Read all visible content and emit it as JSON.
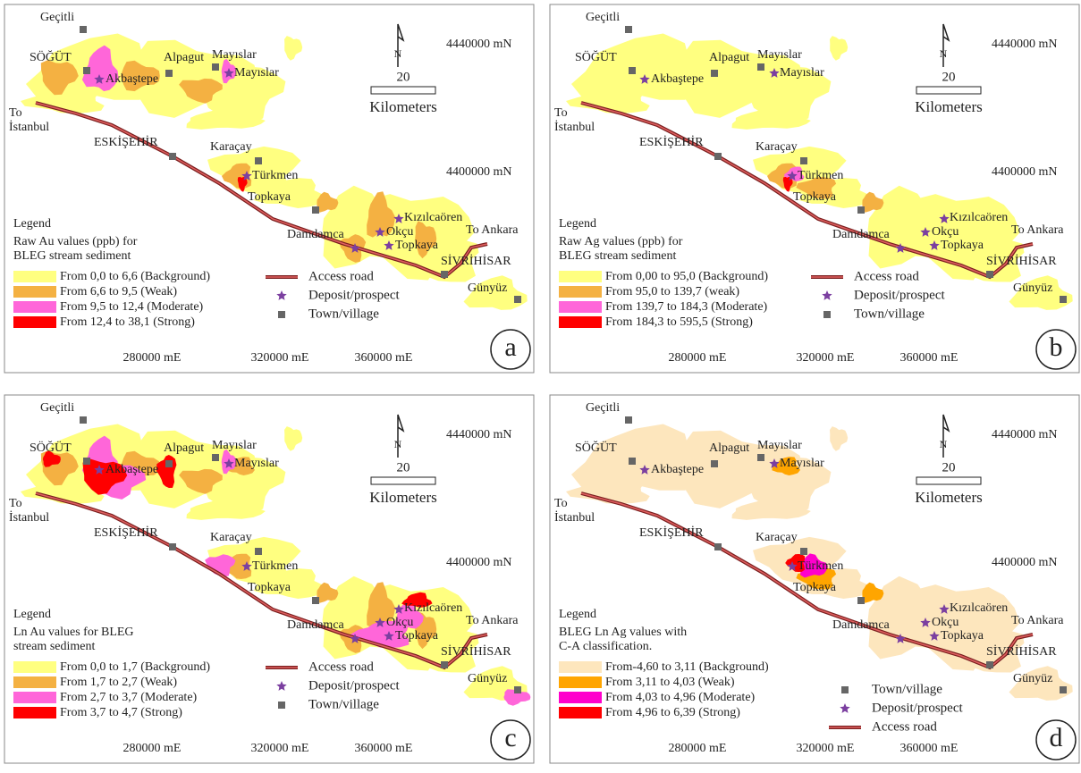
{
  "panels": [
    {
      "letter": "a",
      "places": [
        "Geçitli",
        "SÖĞÜT",
        "Akbaştepe",
        "Alpagut",
        "Mayıslar",
        "Mayıslar",
        "ESKİŞEHİR",
        "Karaçay",
        "Türkmen",
        "Topkaya",
        "Damdamca",
        "Kızılcaören",
        "Okçu",
        "Topkaya",
        "To Ankara",
        "SİVRİHİSAR",
        "Günyüz",
        "To",
        "İstanbul"
      ],
      "north": "N",
      "scale": "20",
      "scale_unit": "Kilometers",
      "northings": [
        "4440000 mN",
        "4400000 mN"
      ],
      "eastings": [
        "280000 mE",
        "320000 mE",
        "360000 mE"
      ],
      "legend": {
        "heading": "Legend",
        "title": [
          "Raw Au values (ppb) for",
          "BLEG stream sediment"
        ],
        "classes": [
          {
            "label": "From 0,0 to 6,6 (Background)",
            "color": "#ffff80"
          },
          {
            "label": "From 6,6 to 9,5 (Weak)",
            "color": "#f4b142"
          },
          {
            "label": "From 9,5 to 12,4 (Moderate)",
            "color": "#ff66d9"
          },
          {
            "label": "From 12,4 to 38,1 (Strong)",
            "color": "#ff0000"
          }
        ]
      },
      "symbols": [
        "Access road",
        "Deposit/prospect",
        "Town/village"
      ]
    },
    {
      "letter": "b",
      "places": [
        "Geçitli",
        "SÖĞÜT",
        "Akbaştepe",
        "Alpagut",
        "Mayıslar",
        "Mayıslar",
        "ESKİŞEHİR",
        "Karaçay",
        "Türkmen",
        "Topkaya",
        "Damdamca",
        "Kızılcaören",
        "Okçu",
        "Topkaya",
        "To Ankara",
        "SİVRİHİSAR",
        "Günyüz",
        "To",
        "İstanbul"
      ],
      "north": "N",
      "scale": "20",
      "scale_unit": "Kilometers",
      "northings": [
        "4440000 mN",
        "4400000 mN"
      ],
      "eastings": [
        "280000 mE",
        "320000 mE",
        "360000 mE"
      ],
      "legend": {
        "heading": "Legend",
        "title": [
          "Raw Ag values (ppb) for",
          "BLEG stream sediment"
        ],
        "classes": [
          {
            "label": "From 0,00 to 95,0 (Background)",
            "color": "#ffff80"
          },
          {
            "label": "From 95,0 to 139,7 (weak)",
            "color": "#f4b142"
          },
          {
            "label": "From 139,7 to 184,3 (Moderate)",
            "color": "#ff66d9"
          },
          {
            "label": "From 184,3 to 595,5 (Strong)",
            "color": "#ff0000"
          }
        ]
      },
      "symbols": [
        "Access road",
        "Deposit/prospect",
        "Town/village"
      ]
    },
    {
      "letter": "c",
      "places": [
        "Geçitli",
        "SÖĞÜT",
        "Akbaştepe",
        "Alpagut",
        "Mayıslar",
        "Mayıslar",
        "ESKİŞEHİR",
        "Karaçay",
        "Türkmen",
        "Topkaya",
        "Damdamca",
        "Kızılcaören",
        "Okçu",
        "Topkaya",
        "To Ankara",
        "SİVRİHİSAR",
        "Günyüz",
        "To",
        "İstanbul"
      ],
      "north": "N",
      "scale": "20",
      "scale_unit": "Kilometers",
      "northings": [
        "4440000 mN",
        "4400000 mN"
      ],
      "eastings": [
        "280000 mE",
        "320000 mE",
        "360000 mE"
      ],
      "legend": {
        "heading": "Legend",
        "title": [
          "Ln Au values for BLEG",
          " stream sediment"
        ],
        "classes": [
          {
            "label": "From 0,0  to 1,7 (Background)",
            "color": "#ffff80"
          },
          {
            "label": "From 1,7  to 2,7 (Weak)",
            "color": "#f4b142"
          },
          {
            "label": "From 2,7  to 3,7 (Moderate)",
            "color": "#ff66d9"
          },
          {
            "label": "From 3,7  to 4,7 (Strong)",
            "color": "#ff0000"
          }
        ]
      },
      "symbols": [
        "Access road",
        "Deposit/prospect",
        "Town/village"
      ]
    },
    {
      "letter": "d",
      "places": [
        "Geçitli",
        "SÖĞÜT",
        "Akbaştepe",
        "Alpagut",
        "Mayıslar",
        "Mayıslar",
        "ESKİŞEHİR",
        "Karaçay",
        "Türkmen",
        "Topkaya",
        "Damdamca",
        "Kızılcaören",
        "Okçu",
        "Topkaya",
        "To Ankara",
        "SİVRİHİSAR",
        "Günyüz",
        "To",
        "İstanbul"
      ],
      "north": "N",
      "scale": "20",
      "scale_unit": "Kilometers",
      "northings": [
        "4440000 mN",
        "4400000 mN"
      ],
      "eastings": [
        "280000 mE",
        "320000 mE",
        "360000 mE"
      ],
      "legend": {
        "heading": "Legend",
        "title": [
          "BLEG Ln Ag values with",
          "C-A classification."
        ],
        "classes": [
          {
            "label": "From-4,60 to 3,11 (Background)",
            "color": "#fde6bd"
          },
          {
            "label": "From 3,11 to 4,03 (Weak)",
            "color": "#ffa500"
          },
          {
            "label": "From 4,03 to 4,96 (Moderate)",
            "color": "#ff00cc"
          },
          {
            "label": "From 4,96 to 6,39 (Strong)",
            "color": "#ff0000"
          }
        ]
      },
      "symbols": [
        "Town/village",
        "Deposit/prospect",
        "Access road"
      ]
    }
  ]
}
